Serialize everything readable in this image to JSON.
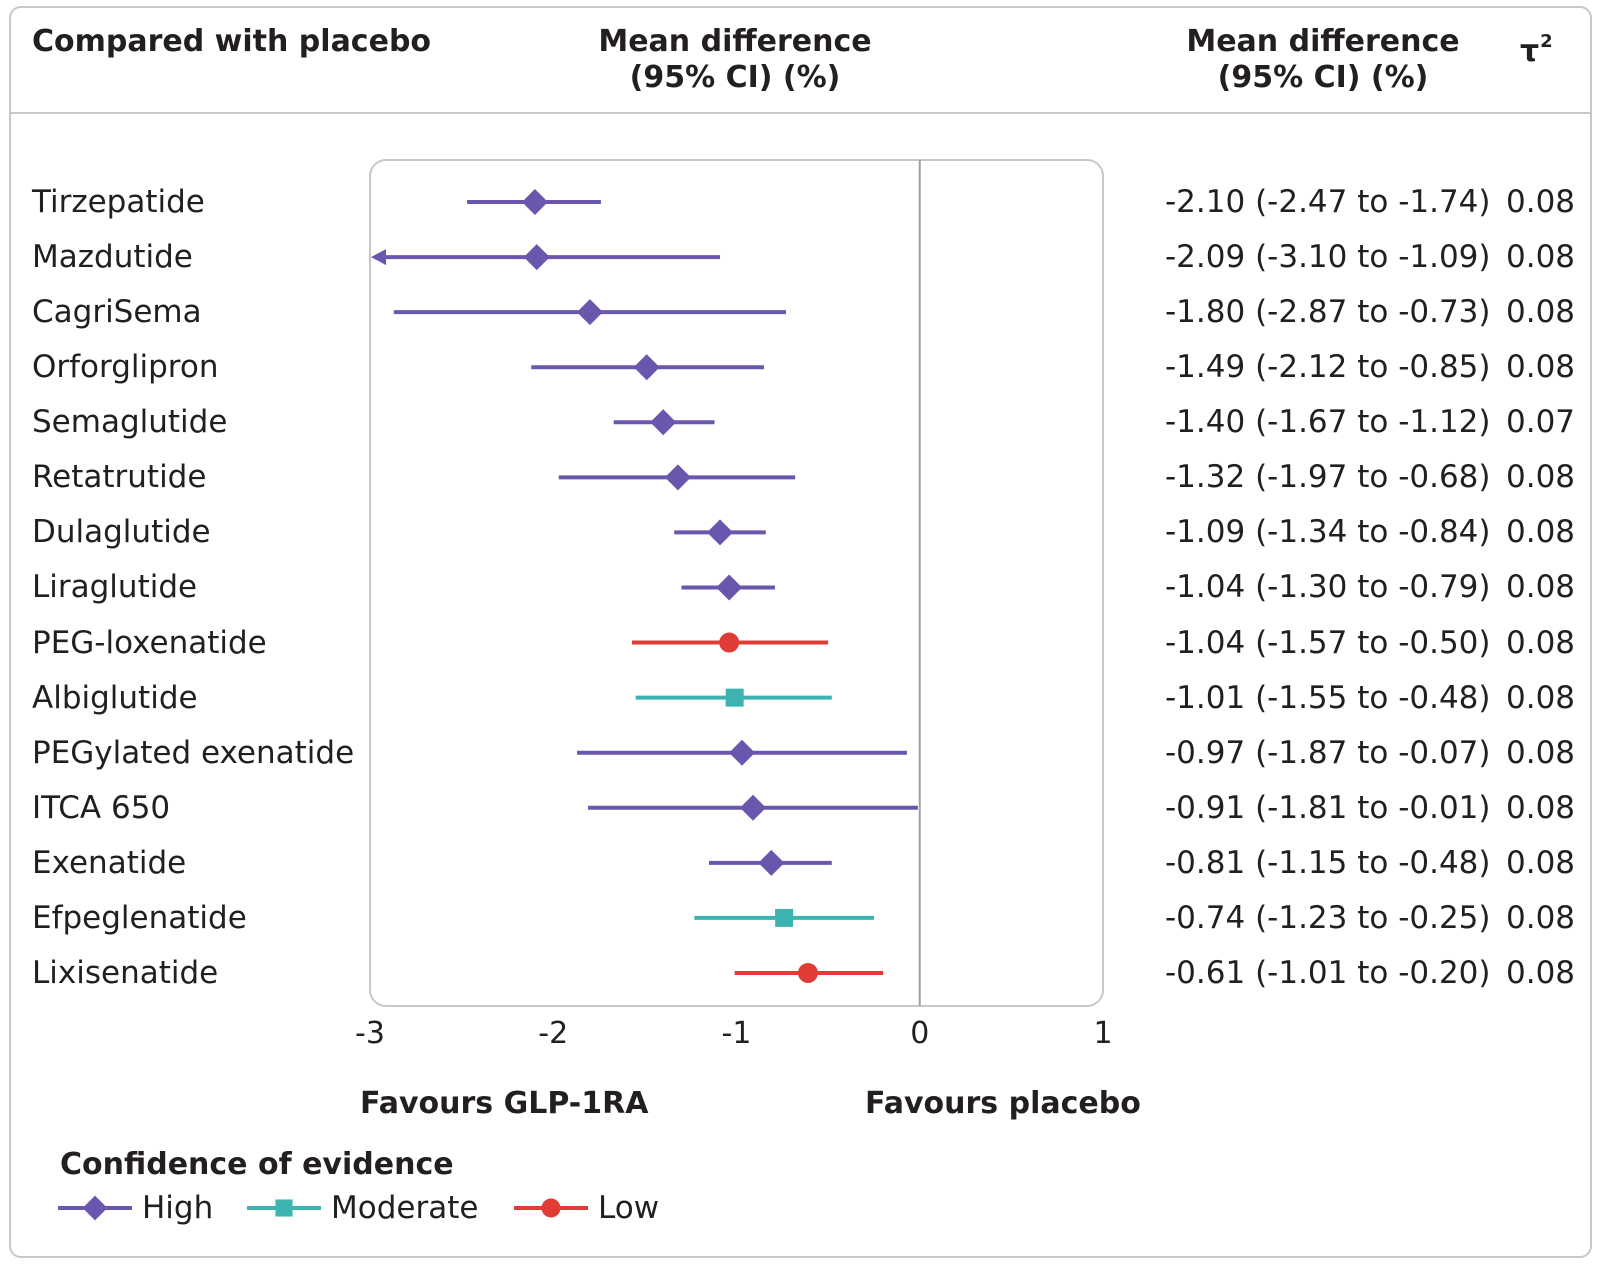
{
  "header": {
    "comparison": "Compared with placebo",
    "plot_col_line1": "Mean difference",
    "plot_col_line2": "(95% CI) (%)",
    "values_col_line1": "Mean difference",
    "values_col_line2": "(95% CI) (%)",
    "tau_label": "τ",
    "tau_sup": "2"
  },
  "rows": [
    {
      "label": "Tirzepatide",
      "ci_text": "-2.10 (-2.47 to -1.74)",
      "tau": "0.08"
    },
    {
      "label": "Mazdutide",
      "ci_text": "-2.09 (-3.10 to -1.09)",
      "tau": "0.08"
    },
    {
      "label": "CagriSema",
      "ci_text": "-1.80 (-2.87 to -0.73)",
      "tau": "0.08"
    },
    {
      "label": "Orforglipron",
      "ci_text": "-1.49 (-2.12 to -0.85)",
      "tau": "0.08"
    },
    {
      "label": "Semaglutide",
      "ci_text": "-1.40 (-1.67 to -1.12)",
      "tau": "0.07"
    },
    {
      "label": "Retatrutide",
      "ci_text": "-1.32 (-1.97 to -0.68)",
      "tau": "0.08"
    },
    {
      "label": "Dulaglutide",
      "ci_text": "-1.09 (-1.34 to -0.84)",
      "tau": "0.08"
    },
    {
      "label": "Liraglutide",
      "ci_text": "-1.04 (-1.30 to -0.79)",
      "tau": "0.08"
    },
    {
      "label": "PEG-loxenatide",
      "ci_text": "-1.04 (-1.57 to -0.50)",
      "tau": "0.08"
    },
    {
      "label": "Albiglutide",
      "ci_text": "-1.01 (-1.55 to -0.48)",
      "tau": "0.08"
    },
    {
      "label": "PEGylated exenatide",
      "ci_text": "-0.97 (-1.87 to -0.07)",
      "tau": "0.08"
    },
    {
      "label": "ITCA 650",
      "ci_text": "-0.91 (-1.81 to -0.01)",
      "tau": "0.08"
    },
    {
      "label": "Exenatide",
      "ci_text": "-0.81 (-1.15 to -0.48)",
      "tau": "0.08"
    },
    {
      "label": "Efpeglenatide",
      "ci_text": "-0.74 (-1.23 to -0.25)",
      "tau": "0.08"
    },
    {
      "label": "Lixisenatide",
      "ci_text": "-0.61 (-1.01 to -0.20)",
      "tau": "0.08"
    }
  ],
  "axis": {
    "favours_left": "Favours GLP-1RA",
    "favours_right": "Favours placebo"
  },
  "legend": {
    "title": "Confidence of evidence",
    "items": [
      {
        "key": "high",
        "label": "High"
      },
      {
        "key": "moderate",
        "label": "Moderate"
      },
      {
        "key": "low",
        "label": "Low"
      }
    ]
  },
  "colors": {
    "high": "#6b56ad",
    "moderate": "#3cb3b0",
    "low": "#e03c35",
    "frame": "#c8c8c8",
    "text": "#231f20"
  },
  "chart_data": {
    "type": "forest",
    "xlim": [
      -3,
      1
    ],
    "xticks": [
      -3,
      -2,
      -1,
      0,
      1
    ],
    "reference_line": 0,
    "categories": [
      "Tirzepatide",
      "Mazdutide",
      "CagriSema",
      "Orforglipron",
      "Semaglutide",
      "Retatrutide",
      "Dulaglutide",
      "Liraglutide",
      "PEG-loxenatide",
      "Albiglutide",
      "PEGylated exenatide",
      "ITCA 650",
      "Exenatide",
      "Efpeglenatide",
      "Lixisenatide"
    ],
    "estimates": [
      -2.1,
      -2.09,
      -1.8,
      -1.49,
      -1.4,
      -1.32,
      -1.09,
      -1.04,
      -1.04,
      -1.01,
      -0.97,
      -0.91,
      -0.81,
      -0.74,
      -0.61
    ],
    "lower": [
      -2.47,
      -3.1,
      -2.87,
      -2.12,
      -1.67,
      -1.97,
      -1.34,
      -1.3,
      -1.57,
      -1.55,
      -1.87,
      -1.81,
      -1.15,
      -1.23,
      -1.01
    ],
    "upper": [
      -1.74,
      -1.09,
      -0.73,
      -0.85,
      -1.12,
      -0.68,
      -0.84,
      -0.79,
      -0.5,
      -0.48,
      -0.07,
      -0.01,
      -0.48,
      -0.25,
      -0.2
    ],
    "confidence": [
      "high",
      "high",
      "high",
      "high",
      "high",
      "high",
      "high",
      "high",
      "low",
      "moderate",
      "high",
      "high",
      "high",
      "moderate",
      "low"
    ],
    "tau2": [
      0.08,
      0.08,
      0.08,
      0.08,
      0.07,
      0.08,
      0.08,
      0.08,
      0.08,
      0.08,
      0.08,
      0.08,
      0.08,
      0.08,
      0.08
    ],
    "xlabel_left": "Favours GLP-1RA",
    "xlabel_right": "Favours placebo",
    "legend_placement": "bottom-left"
  }
}
